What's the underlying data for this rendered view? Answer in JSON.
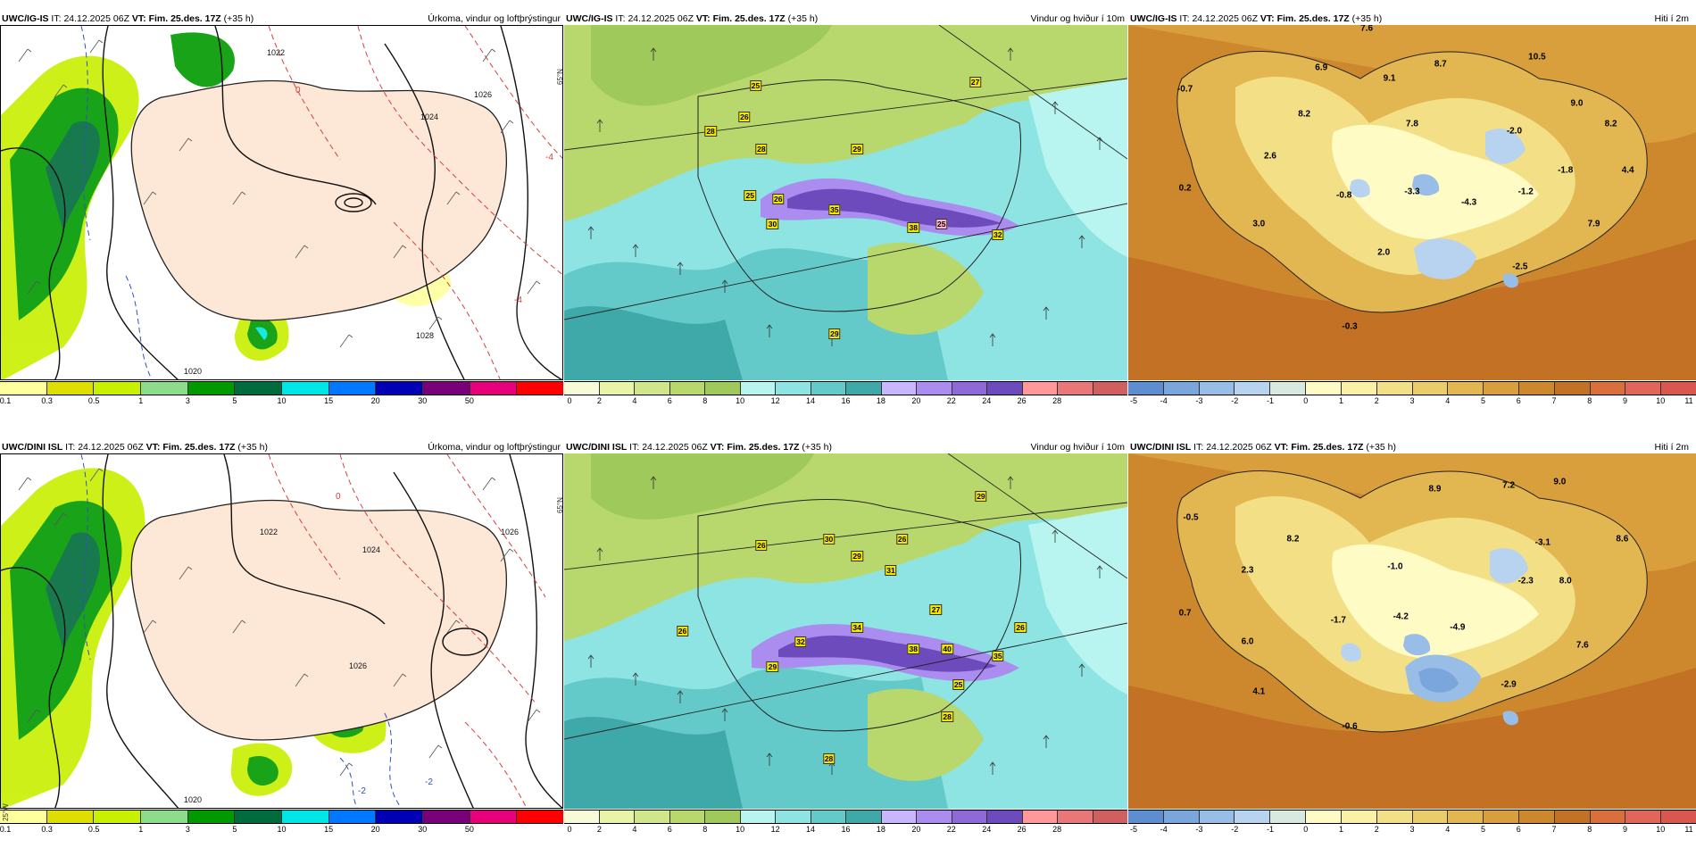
{
  "models": [
    {
      "name": "UWC/IG-IS",
      "it_label": "IT:",
      "it": "24.12.2025 06Z",
      "vt_label": "VT:",
      "vt": "Fim. 25.des. 17Z",
      "step": "(+35 h)",
      "precip": {
        "isobars": [
          "1022",
          "1024",
          "1026",
          "1028",
          "1020"
        ],
        "dashed": [
          "-4",
          "0",
          "-4"
        ]
      },
      "wind": {
        "gusts": [
          "25",
          "27",
          "28",
          "26",
          "28",
          "29",
          "25",
          "26",
          "35",
          "30",
          "38",
          "32",
          "25",
          "29"
        ]
      },
      "temp": {
        "labels": [
          "7.6",
          "6.9",
          "-0.7",
          "8.2",
          "9.1",
          "8.7",
          "10.5",
          "9.0",
          "8.2",
          "-2.0",
          "7.8",
          "2.6",
          "-1.8",
          "4.4",
          "0.2",
          "-0.8",
          "-3.3",
          "-1.2",
          "-4.3",
          "3.0",
          "7.9",
          "2.0",
          "-2.5",
          "-0.3"
        ]
      }
    },
    {
      "name": "UWC/DINI ISL",
      "it_label": "IT:",
      "it": "24.12.2025 06Z",
      "vt_label": "VT:",
      "vt": "Fim. 25.des. 17Z",
      "step": "(+35 h)",
      "precip": {
        "isobars": [
          "1022",
          "1024",
          "1026",
          "1026",
          "1020"
        ],
        "dashed": [
          "0",
          "-2",
          "-2"
        ]
      },
      "wind": {
        "gusts": [
          "29",
          "26",
          "30",
          "29",
          "31",
          "26",
          "26",
          "32",
          "34",
          "27",
          "29",
          "38",
          "40",
          "35",
          "25",
          "28",
          "28",
          "26"
        ]
      },
      "temp": {
        "labels": [
          "8.9",
          "7.2",
          "9.0",
          "-0.5",
          "8.2",
          "8.6",
          "-3.1",
          "-1.0",
          "2.3",
          "-2.3",
          "8.0",
          "0.7",
          "-1.7",
          "-4.2",
          "6.0",
          "-4.9",
          "7.6",
          "4.1",
          "-2.9",
          "-0.6"
        ]
      }
    }
  ],
  "titles": {
    "precip": "Úrkoma, vindur og loftþrýstingur",
    "wind": "Vindur og hviður í 10m",
    "temp": "Hiti í 2m"
  },
  "colorbars": {
    "precip": {
      "colors": [
        "#ffff9e",
        "#dede00",
        "#c8f000",
        "#8cdc8c",
        "#009a00",
        "#006b3c",
        "#00e6e6",
        "#0078ff",
        "#0000b4",
        "#780078",
        "#e6007a",
        "#ff0000"
      ],
      "ticks": [
        "0.1",
        "0.3",
        "0.5",
        "1",
        "3",
        "5",
        "10",
        "15",
        "20",
        "30",
        "50"
      ]
    },
    "wind": {
      "colors": [
        "#f7fbd7",
        "#e8f5a8",
        "#cfe68a",
        "#b8d86e",
        "#9fc95a",
        "#b9f5f0",
        "#8ee3e3",
        "#63c9c9",
        "#3fa8a8",
        "#c8b6ff",
        "#ab8df0",
        "#8e6ad8",
        "#6e4bbd",
        "#ff9999",
        "#e87878",
        "#d06060"
      ],
      "ticks": [
        "0",
        "2",
        "4",
        "6",
        "8",
        "10",
        "12",
        "14",
        "16",
        "18",
        "20",
        "22",
        "24",
        "26",
        "28"
      ]
    },
    "temp": {
      "colors": [
        "#5f8ed0",
        "#7aa6dc",
        "#98bde6",
        "#b8d3ef",
        "#d8e9e0",
        "#fffbc5",
        "#fbf0a5",
        "#f3df86",
        "#ebcc6a",
        "#e2b650",
        "#d89f3c",
        "#cd882e",
        "#c27125",
        "#d86f3d",
        "#e2655a",
        "#d9574f"
      ],
      "ticks": [
        "-5",
        "-4",
        "-3",
        "-2",
        "-1",
        "0",
        "1",
        "2",
        "3",
        "4",
        "5",
        "6",
        "7",
        "8",
        "9",
        "10",
        "11"
      ]
    }
  },
  "edge_labels": {
    "lat": "65°N",
    "lon": "25°W"
  }
}
